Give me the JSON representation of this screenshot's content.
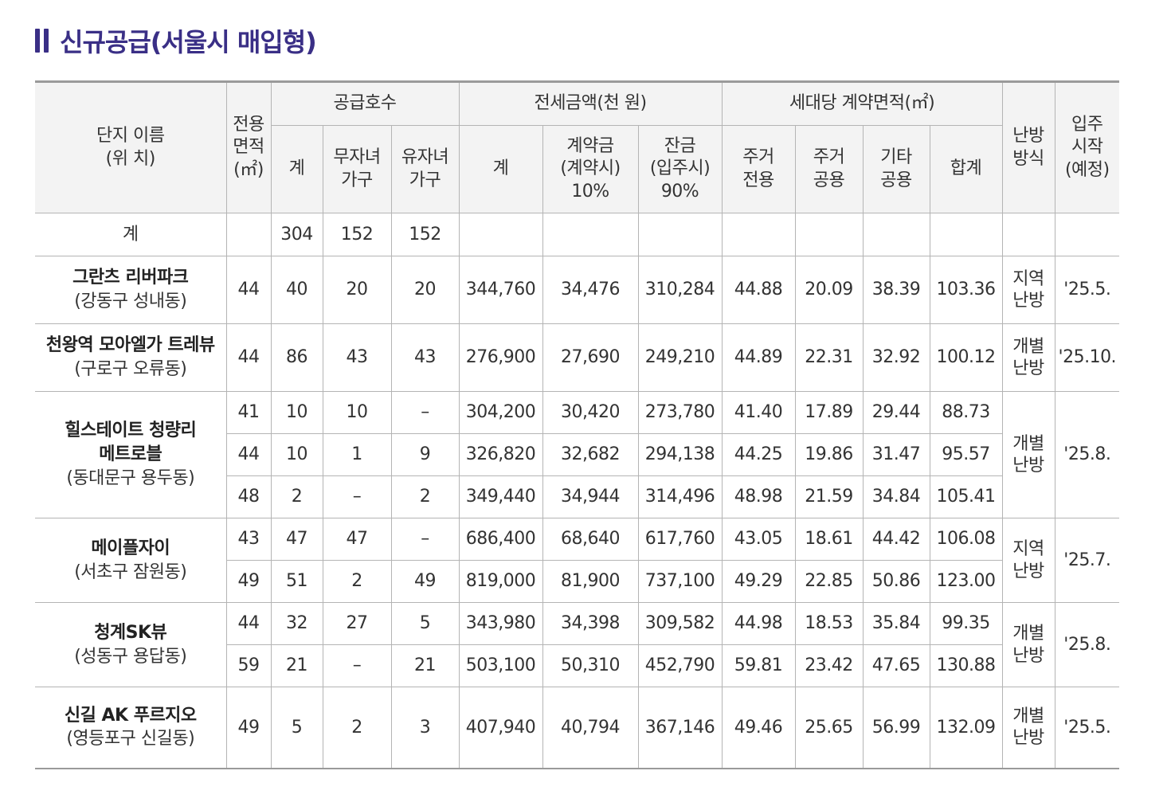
{
  "title": "신규공급(서울시 매입형)",
  "header": {
    "complex_l1": "단지 이름",
    "complex_l2": "(위 치)",
    "area_l1": "전용",
    "area_l2": "면적",
    "area_l3": "(㎡)",
    "supply_group": "공급호수",
    "supply_total": "계",
    "supply_nochild_l1": "무자녀",
    "supply_nochild_l2": "가구",
    "supply_child_l1": "유자녀",
    "supply_child_l2": "가구",
    "price_group": "전세금액(천 원)",
    "price_total": "계",
    "deposit_l1": "계약금",
    "deposit_l2": "(계약시)",
    "deposit_l3": "10%",
    "balance_l1": "잔금",
    "balance_l2": "(입주시)",
    "balance_l3": "90%",
    "contract_group": "세대당 계약면적(㎡)",
    "res_exclusive_l1": "주거",
    "res_exclusive_l2": "전용",
    "res_common_l1": "주거",
    "res_common_l2": "공용",
    "other_common_l1": "기타",
    "other_common_l2": "공용",
    "contract_sum": "합계",
    "heating_l1": "난방",
    "heating_l2": "방식",
    "movein_l1": "입주",
    "movein_l2": "시작",
    "movein_l3": "(예정)"
  },
  "totals": {
    "label": "계",
    "supply_total": "304",
    "nochild": "152",
    "child": "152"
  },
  "complexes": [
    {
      "name": "그란츠 리버파크",
      "location": "(강동구 성내동)",
      "heating_l1": "지역",
      "heating_l2": "난방",
      "movein": "'25.5.",
      "rows": [
        {
          "area": "44",
          "total": "40",
          "nochild": "20",
          "child": "20",
          "price": "344,760",
          "deposit": "34,476",
          "balance": "310,284",
          "res_ex": "44.88",
          "res_co": "20.09",
          "oth_co": "38.39",
          "sum": "103.36"
        }
      ]
    },
    {
      "name": "천왕역 모아엘가 트레뷰",
      "location": "(구로구 오류동)",
      "heating_l1": "개별",
      "heating_l2": "난방",
      "movein": "'25.10.",
      "rows": [
        {
          "area": "44",
          "total": "86",
          "nochild": "43",
          "child": "43",
          "price": "276,900",
          "deposit": "27,690",
          "balance": "249,210",
          "res_ex": "44.89",
          "res_co": "22.31",
          "oth_co": "32.92",
          "sum": "100.12"
        }
      ]
    },
    {
      "name": "힐스테이트 청량리",
      "name_l2": "메트로블",
      "location": "(동대문구 용두동)",
      "heating_l1": "개별",
      "heating_l2": "난방",
      "movein": "'25.8.",
      "rows": [
        {
          "area": "41",
          "total": "10",
          "nochild": "10",
          "child": "–",
          "price": "304,200",
          "deposit": "30,420",
          "balance": "273,780",
          "res_ex": "41.40",
          "res_co": "17.89",
          "oth_co": "29.44",
          "sum": "88.73"
        },
        {
          "area": "44",
          "total": "10",
          "nochild": "1",
          "child": "9",
          "price": "326,820",
          "deposit": "32,682",
          "balance": "294,138",
          "res_ex": "44.25",
          "res_co": "19.86",
          "oth_co": "31.47",
          "sum": "95.57"
        },
        {
          "area": "48",
          "total": "2",
          "nochild": "–",
          "child": "2",
          "price": "349,440",
          "deposit": "34,944",
          "balance": "314,496",
          "res_ex": "48.98",
          "res_co": "21.59",
          "oth_co": "34.84",
          "sum": "105.41"
        }
      ]
    },
    {
      "name": "메이플자이",
      "location": "(서초구 잠원동)",
      "heating_l1": "지역",
      "heating_l2": "난방",
      "movein": "'25.7.",
      "rows": [
        {
          "area": "43",
          "total": "47",
          "nochild": "47",
          "child": "–",
          "price": "686,400",
          "deposit": "68,640",
          "balance": "617,760",
          "res_ex": "43.05",
          "res_co": "18.61",
          "oth_co": "44.42",
          "sum": "106.08"
        },
        {
          "area": "49",
          "total": "51",
          "nochild": "2",
          "child": "49",
          "price": "819,000",
          "deposit": "81,900",
          "balance": "737,100",
          "res_ex": "49.29",
          "res_co": "22.85",
          "oth_co": "50.86",
          "sum": "123.00"
        }
      ]
    },
    {
      "name": "청계SK뷰",
      "location": "(성동구 용답동)",
      "heating_l1": "개별",
      "heating_l2": "난방",
      "movein": "'25.8.",
      "rows": [
        {
          "area": "44",
          "total": "32",
          "nochild": "27",
          "child": "5",
          "price": "343,980",
          "deposit": "34,398",
          "balance": "309,582",
          "res_ex": "44.98",
          "res_co": "18.53",
          "oth_co": "35.84",
          "sum": "99.35"
        },
        {
          "area": "59",
          "total": "21",
          "nochild": "–",
          "child": "21",
          "price": "503,100",
          "deposit": "50,310",
          "balance": "452,790",
          "res_ex": "59.81",
          "res_co": "23.42",
          "oth_co": "47.65",
          "sum": "130.88"
        }
      ]
    },
    {
      "name": "신길 AK 푸르지오",
      "location": "(영등포구 신길동)",
      "heating_l1": "개별",
      "heating_l2": "난방",
      "movein": "'25.5.",
      "rows": [
        {
          "area": "49",
          "total": "5",
          "nochild": "2",
          "child": "3",
          "price": "407,940",
          "deposit": "40,794",
          "balance": "367,146",
          "res_ex": "49.46",
          "res_co": "25.65",
          "oth_co": "56.99",
          "sum": "132.09"
        }
      ]
    }
  ]
}
